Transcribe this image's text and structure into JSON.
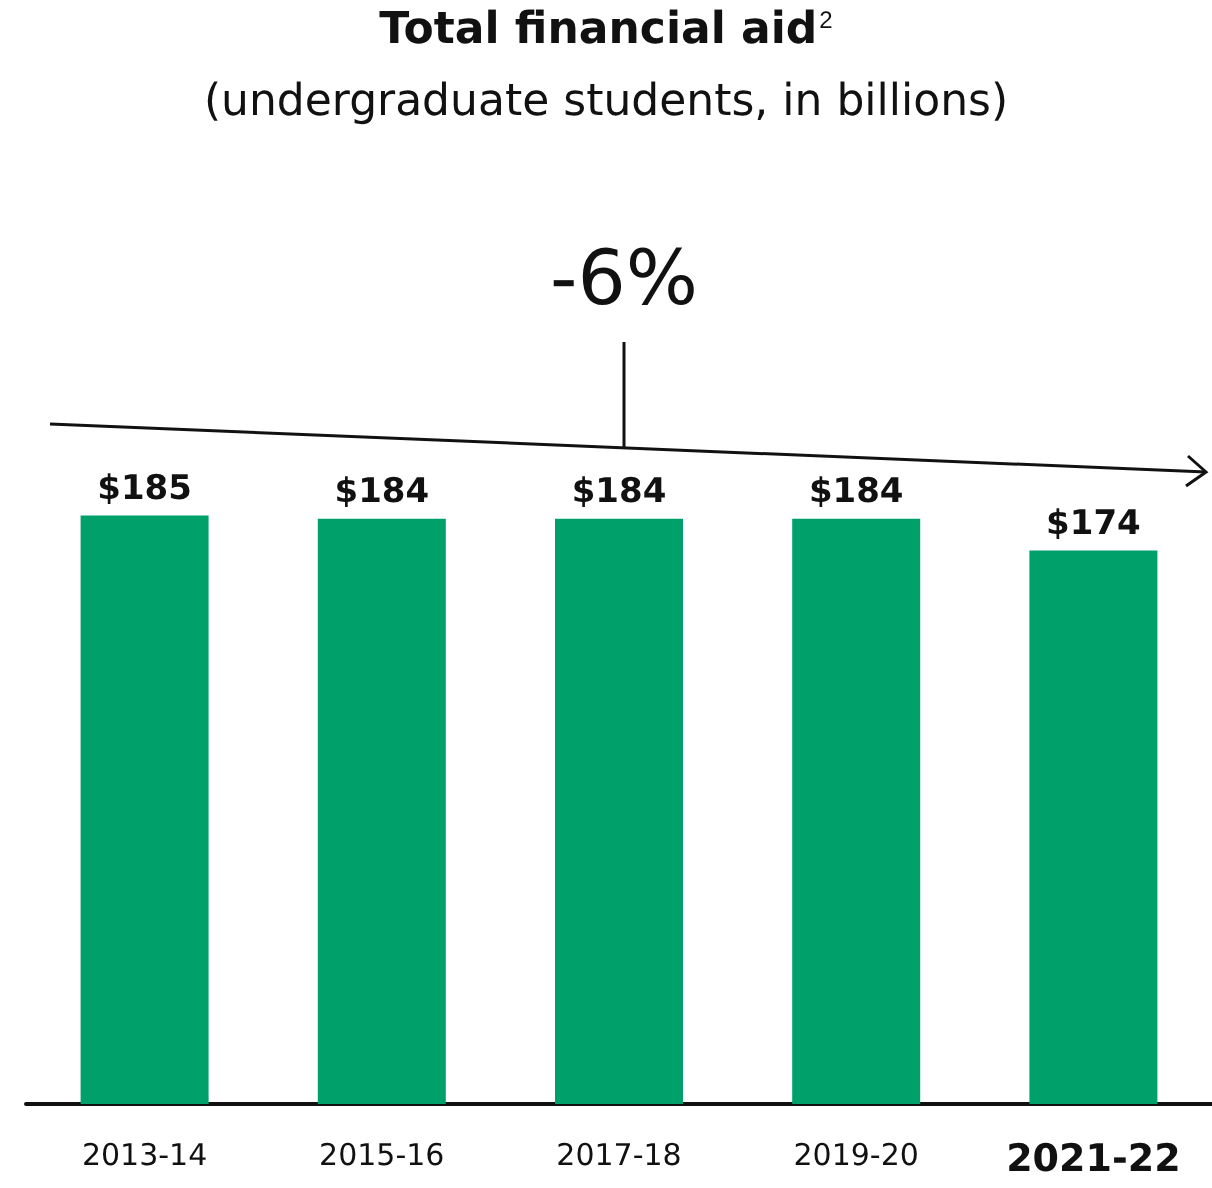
{
  "chart_data": {
    "type": "bar",
    "title": "Total financial aid$^{2}$",
    "subtitle": "(undergraduate students, in billions)",
    "categories": [
      "2013-14",
      "2015-16",
      "2017-18",
      "2019-20",
      "2021-22"
    ],
    "values": [
      185,
      184,
      184,
      184,
      174
    ],
    "color": "#00a06b",
    "value_labels": [
      "$185",
      "$184",
      "$184",
      "$184",
      "$174"
    ],
    "tick_labels": "x",
    "grid": false,
    "annotations": [
      "-6%"
    ]
  }
}
